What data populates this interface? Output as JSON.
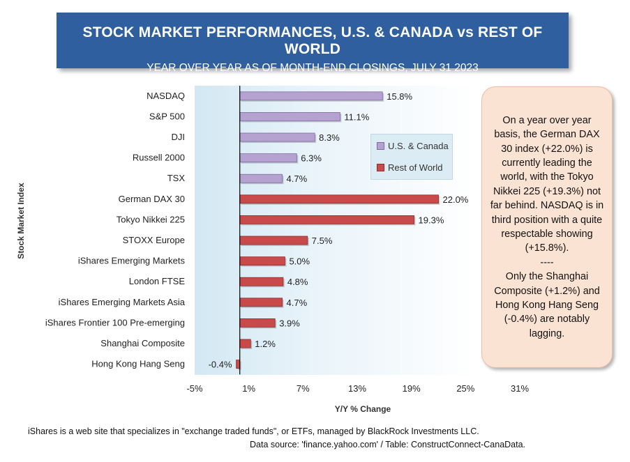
{
  "header": {
    "title": "STOCK MARKET PERFORMANCES, U.S. & CANADA vs REST OF WORLD",
    "subtitle": "YEAR OVER YEAR AS OF MONTH-END CLOSINGS, JULY 31 2023"
  },
  "chart_data": {
    "type": "bar",
    "orientation": "horizontal",
    "ylabel": "Stock Market Index",
    "xlabel": "Y/Y % Change",
    "x_ticks": [
      "-5%",
      "1%",
      "7%",
      "13%",
      "19%",
      "25%",
      "31%"
    ],
    "xlim": [
      -5,
      31
    ],
    "grid": false,
    "legend_position": "top-right",
    "series": [
      {
        "name": "U.S. & Canada",
        "color": "#b6a2d1"
      },
      {
        "name": "Rest of World",
        "color": "#c84a4a"
      }
    ],
    "points": [
      {
        "category": "NASDAQ",
        "value": 15.8,
        "label": "15.8%",
        "series": 0
      },
      {
        "category": "S&P 500",
        "value": 11.1,
        "label": "11.1%",
        "series": 0
      },
      {
        "category": "DJI",
        "value": 8.3,
        "label": "8.3%",
        "series": 0
      },
      {
        "category": "Russell  2000",
        "value": 6.3,
        "label": "6.3%",
        "series": 0
      },
      {
        "category": "TSX",
        "value": 4.7,
        "label": "4.7%",
        "series": 0
      },
      {
        "category": "German DAX 30",
        "value": 22.0,
        "label": "22.0%",
        "series": 1
      },
      {
        "category": "Tokyo Nikkei 225",
        "value": 19.3,
        "label": "19.3%",
        "series": 1
      },
      {
        "category": "STOXX Europe",
        "value": 7.5,
        "label": "7.5%",
        "series": 1
      },
      {
        "category": "iShares Emerging Markets",
        "value": 5.0,
        "label": "5.0%",
        "series": 1
      },
      {
        "category": "London FTSE",
        "value": 4.8,
        "label": "4.8%",
        "series": 1
      },
      {
        "category": "iShares Emerging Markets Asia",
        "value": 4.7,
        "label": "4.7%",
        "series": 1
      },
      {
        "category": "iShares Frontier 100 Pre-emerging",
        "value": 3.9,
        "label": "3.9%",
        "series": 1
      },
      {
        "category": "Shanghai Composite",
        "value": 1.2,
        "label": "1.2%",
        "series": 1
      },
      {
        "category": "Hong Kong Hang Seng",
        "value": -0.4,
        "label": "-0.4%",
        "series": 1
      }
    ]
  },
  "note": {
    "text": "On a year over year basis, the German DAX 30 index (+22.0%) is currently leading the world, with the Tokyo Nikkei 225 (+19.3%) not far behind. NASDAQ is in third position with a quite respectable showing (+15.8%).\n----\nOnly the Shanghai Composite (+1.2%) and Hong Kong Hang Seng (-0.4%) are notably lagging."
  },
  "footer": {
    "line1": "iShares is a web site that specializes in \"exchange traded funds\", or ETFs, managed by BlackRock Investments LLC.",
    "line2": "Data source: 'finance.yahoo.com' / Table: ConstructConnect-CanaData."
  }
}
